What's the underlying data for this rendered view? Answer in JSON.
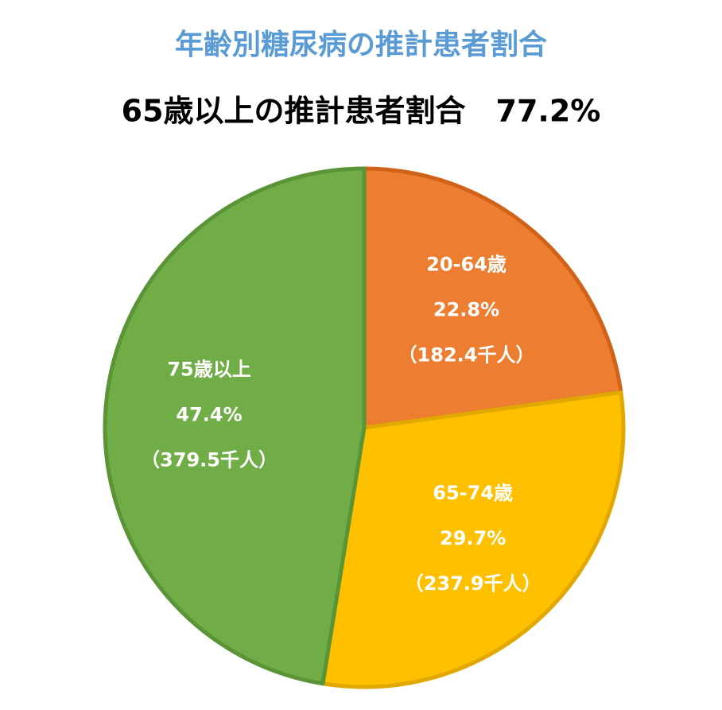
{
  "chart_data": {
    "type": "pie",
    "title": "年齢別糖尿病の推計患者割合",
    "subtitle": "65歳以上の推計患者割合　77.2%",
    "categories": [
      "20-64歳",
      "65-74歳",
      "75歳以上"
    ],
    "values": [
      22.8,
      29.7,
      47.4
    ],
    "value_labels": [
      "22.8%",
      "29.7%",
      "47.4%"
    ],
    "counts": [
      182.4,
      237.9,
      379.5
    ],
    "count_labels": [
      "（182.4千人）",
      "（237.9千人）",
      "（379.5千人）"
    ],
    "colors": [
      "#ED7D31",
      "#FFC000",
      "#70AD47"
    ],
    "border_colors": [
      "#D0621A",
      "#E0A800",
      "#5A9437"
    ]
  }
}
